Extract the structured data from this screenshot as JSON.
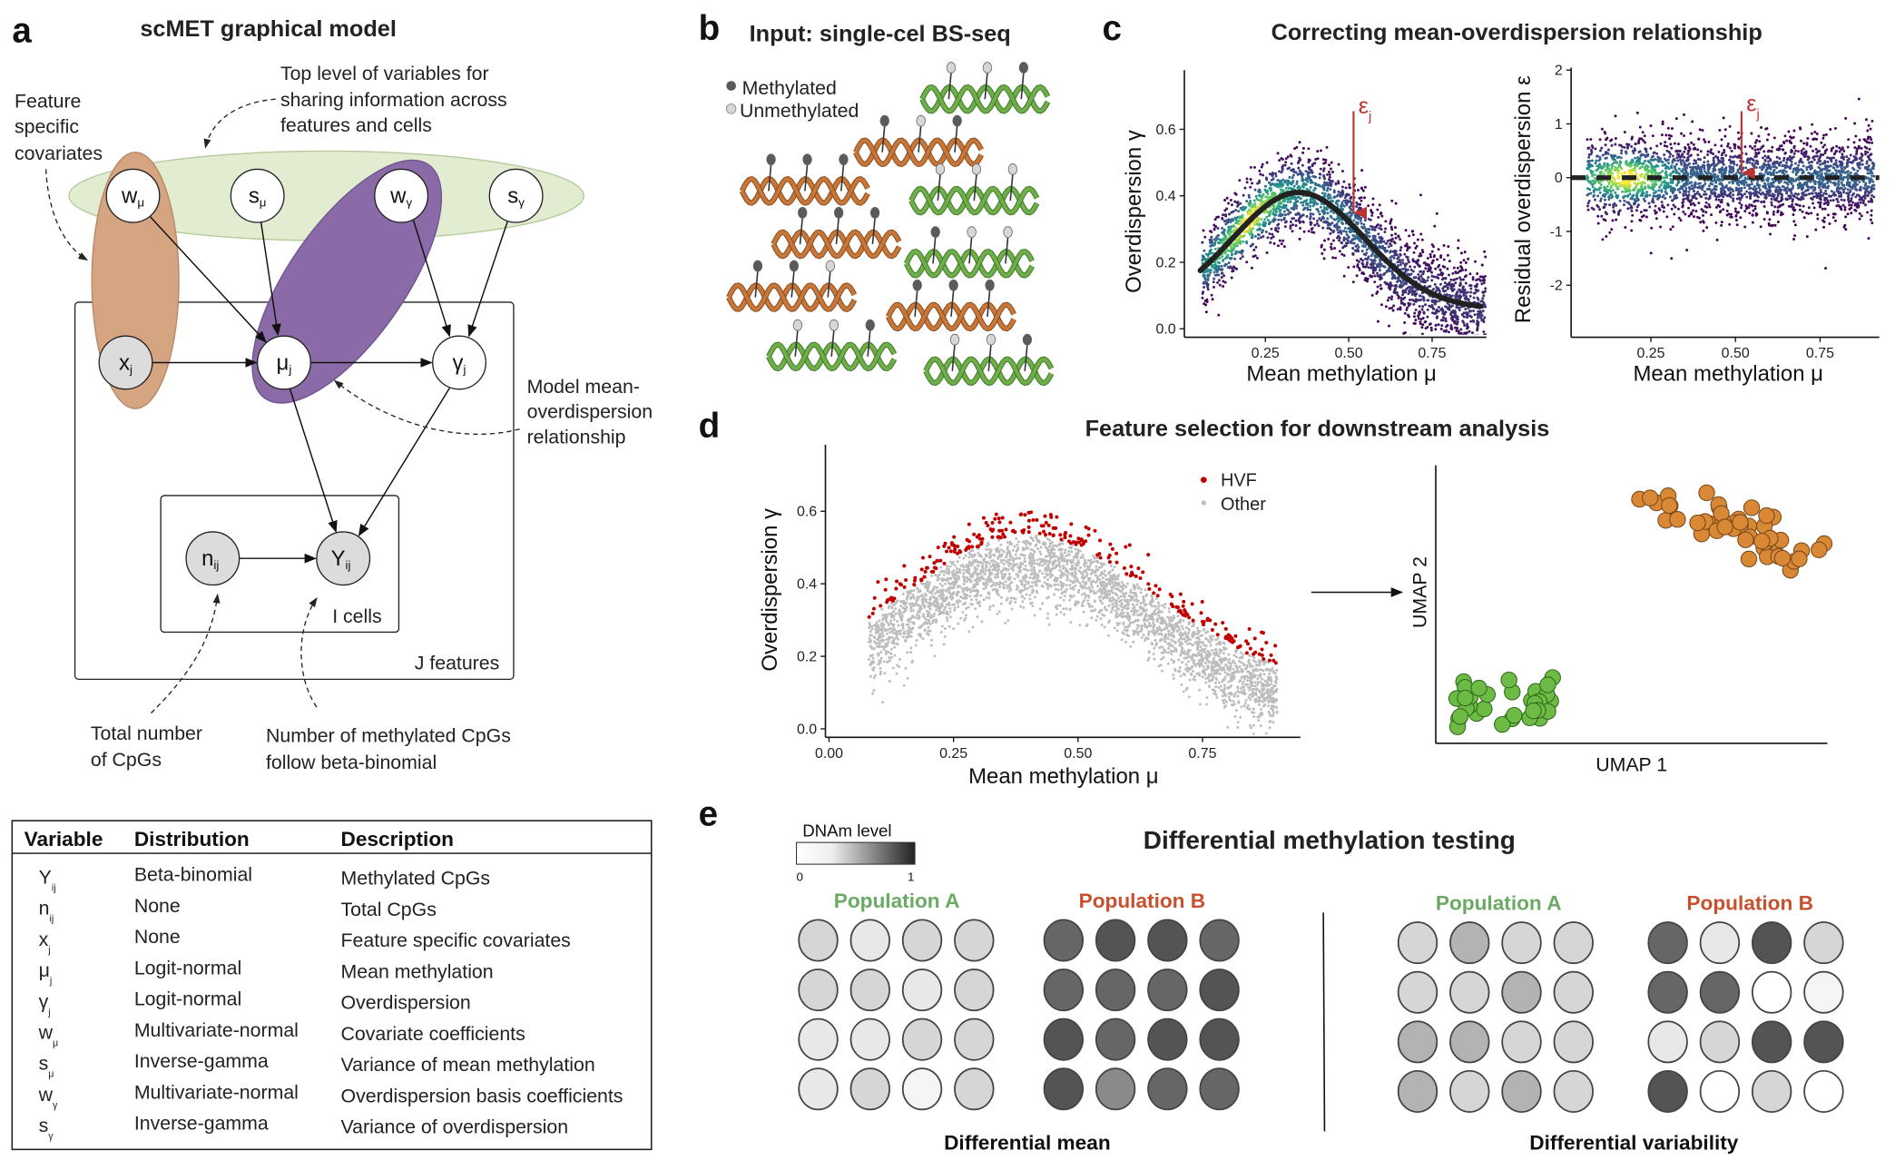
{
  "panel_a": {
    "label": "a",
    "title": "scMET graphical model",
    "top_note": [
      "Top level of variables for",
      "sharing information across",
      "features and cells"
    ],
    "feature_note": [
      "Feature",
      "specific",
      "covariates"
    ],
    "model_note": [
      "Model mean-",
      "overdispersion",
      "relationship"
    ],
    "total_note": [
      "Total number",
      "of CpGs"
    ],
    "meth_note": [
      "Number of methylated CpGs",
      "follow beta-binomial"
    ],
    "plate_cells": "I   cells",
    "plate_features": "J   features",
    "nodes": {
      "w_mu": {
        "base": "w",
        "sub": "μ"
      },
      "s_mu": {
        "base": "s",
        "sub": "μ"
      },
      "w_gamma": {
        "base": "w",
        "sub": "γ"
      },
      "s_gamma": {
        "base": "s",
        "sub": "γ"
      },
      "x_j": {
        "base": "x",
        "sub": "j"
      },
      "mu_j": {
        "base": "μ",
        "sub": "j"
      },
      "gamma_j": {
        "base": "γ",
        "sub": "j"
      },
      "n_ij": {
        "base": "n",
        "sub": "ij"
      },
      "Y_ij": {
        "base": "Y",
        "sub": "ij"
      }
    },
    "colors": {
      "top_level": "#e2ecd0",
      "covariates": "#d5a582",
      "mean_overdispersion": "#8a6ba8"
    }
  },
  "table": {
    "headers": [
      "Variable",
      "Distribution",
      "Description"
    ],
    "rows": [
      {
        "var": "Y",
        "sub": "ij",
        "dist": "Beta-binomial",
        "desc": "Methylated CpGs"
      },
      {
        "var": "n",
        "sub": "ij",
        "dist": "None",
        "desc": "Total CpGs"
      },
      {
        "var": "x",
        "sub": "j",
        "dist": "None",
        "desc": "Feature specific covariates"
      },
      {
        "var": "μ",
        "sub": "j",
        "dist": "Logit-normal",
        "desc": "Mean methylation"
      },
      {
        "var": "γ",
        "sub": "j",
        "dist": "Logit-normal",
        "desc": "Overdispersion"
      },
      {
        "var": "w",
        "sub": "μ",
        "dist": "Multivariate-normal",
        "desc": "Covariate coefficients"
      },
      {
        "var": "s",
        "sub": "μ",
        "dist": "Inverse-gamma",
        "desc": "Variance of mean methylation"
      },
      {
        "var": "w",
        "sub": "γ",
        "dist": "Multivariate-normal",
        "desc": "Overdispersion basis coefficients"
      },
      {
        "var": "s",
        "sub": "γ",
        "dist": "Inverse-gamma",
        "desc": "Variance of overdispersion"
      }
    ]
  },
  "panel_b": {
    "label": "b",
    "title": "Input: single-cel BS-seq",
    "legend": {
      "methylated": "Methylated",
      "unmethylated": "Unmethylated"
    },
    "colors": {
      "methylated": "#5a5a5a",
      "unmethylated": "#d6d6d6",
      "orange_strand": "#c8773a",
      "green_strand": "#6fae4a"
    },
    "strands": [
      {
        "color": "green",
        "sites": [
          0,
          0,
          1
        ]
      },
      {
        "color": "orange",
        "sites": [
          1,
          0,
          1
        ]
      },
      {
        "color": "orange",
        "sites": [
          1,
          1,
          1
        ]
      },
      {
        "color": "green",
        "sites": [
          0,
          0,
          0
        ]
      },
      {
        "color": "orange",
        "sites": [
          1,
          1,
          1
        ]
      },
      {
        "color": "green",
        "sites": [
          1,
          0,
          0
        ]
      },
      {
        "color": "orange",
        "sites": [
          1,
          1,
          0
        ]
      },
      {
        "color": "orange",
        "sites": [
          1,
          1,
          1
        ]
      },
      {
        "color": "green",
        "sites": [
          0,
          0,
          1
        ]
      },
      {
        "color": "green",
        "sites": [
          0,
          0,
          1
        ]
      }
    ]
  },
  "panel_c": {
    "label": "c",
    "title": "Correcting mean-overdispersion relationship",
    "epsilon_label": "ε",
    "epsilon_sub": "j"
  },
  "panel_d": {
    "label": "d",
    "title": "Feature selection for downstream analysis",
    "legend": {
      "hvf": "HVF",
      "other": "Other"
    },
    "umap_x": "UMAP 1",
    "umap_y": "UMAP 2",
    "colors": {
      "hvf": "#c00000",
      "other": "#bdbdbd",
      "cluster1": "#d98836",
      "cluster2": "#6dbb45"
    }
  },
  "panel_e": {
    "label": "e",
    "title": "Differential methylation testing",
    "legend_title": "DNAm level",
    "legend_min": "0",
    "legend_max": "1",
    "pop_a": "Population A",
    "pop_b": "Population B",
    "pop_a_color": "#6aaa64",
    "pop_b_color": "#c9502e",
    "diff_mean": "Differential mean",
    "diff_var": "Differential variability",
    "grids": {
      "mean_a": [
        [
          0.16,
          0.09,
          0.16,
          0.16
        ],
        [
          0.16,
          0.16,
          0.09,
          0.16
        ],
        [
          0.09,
          0.09,
          0.16,
          0.16
        ],
        [
          0.09,
          0.16,
          0.04,
          0.16
        ]
      ],
      "mean_b": [
        [
          0.6,
          0.67,
          0.67,
          0.6
        ],
        [
          0.6,
          0.6,
          0.6,
          0.67
        ],
        [
          0.67,
          0.6,
          0.67,
          0.67
        ],
        [
          0.67,
          0.46,
          0.6,
          0.6
        ]
      ],
      "var_a": [
        [
          0.16,
          0.3,
          0.16,
          0.16
        ],
        [
          0.16,
          0.16,
          0.3,
          0.16
        ],
        [
          0.3,
          0.3,
          0.16,
          0.16
        ],
        [
          0.3,
          0.16,
          0.3,
          0.16
        ]
      ],
      "var_b": [
        [
          0.6,
          0.09,
          0.67,
          0.16
        ],
        [
          0.6,
          0.6,
          0,
          0.04
        ],
        [
          0.09,
          0.16,
          0.67,
          0.67
        ],
        [
          0.67,
          0,
          0.16,
          0
        ]
      ]
    }
  },
  "chart_data": [
    {
      "type": "scatter",
      "title": "Correcting mean-overdispersion relationship",
      "xlabel": "Mean methylation μ",
      "ylabel": "Overdispersion γ",
      "xticks": [
        "0.25",
        "0.50",
        "0.75"
      ],
      "yticks": [
        "0.0",
        "0.2",
        "0.4",
        "0.6"
      ],
      "xlim": [
        0.05,
        0.92
      ],
      "ylim": [
        0,
        0.78
      ],
      "trend_peak": {
        "x": 0.35,
        "y": 0.41
      },
      "annotated_point": {
        "x": 0.52,
        "y": 0.35
      }
    },
    {
      "type": "scatter",
      "xlabel": "Mean methylation μ",
      "ylabel": "Residual overdispersion ε",
      "xticks": [
        "0.25",
        "0.50",
        "0.75"
      ],
      "yticks": [
        "2",
        "1",
        "0",
        "-1",
        "-2"
      ],
      "xlim": [
        0.05,
        0.92
      ],
      "ylim": [
        -2.8,
        2.0
      ],
      "reference_line": 0
    },
    {
      "type": "scatter",
      "xlabel": "Mean methylation μ",
      "ylabel": "Overdispersion γ",
      "xticks": [
        "0.00",
        "0.25",
        "0.50",
        "0.75"
      ],
      "yticks": [
        "0.0",
        "0.2",
        "0.4",
        "0.6"
      ],
      "xlim": [
        0,
        0.95
      ],
      "ylim": [
        0,
        0.78
      ],
      "legend": [
        "HVF",
        "Other"
      ],
      "legend_position": "top-right"
    },
    {
      "type": "scatter",
      "xlabel": "UMAP 1",
      "ylabel": "UMAP 2",
      "clusters": [
        "orange",
        "green"
      ]
    }
  ]
}
